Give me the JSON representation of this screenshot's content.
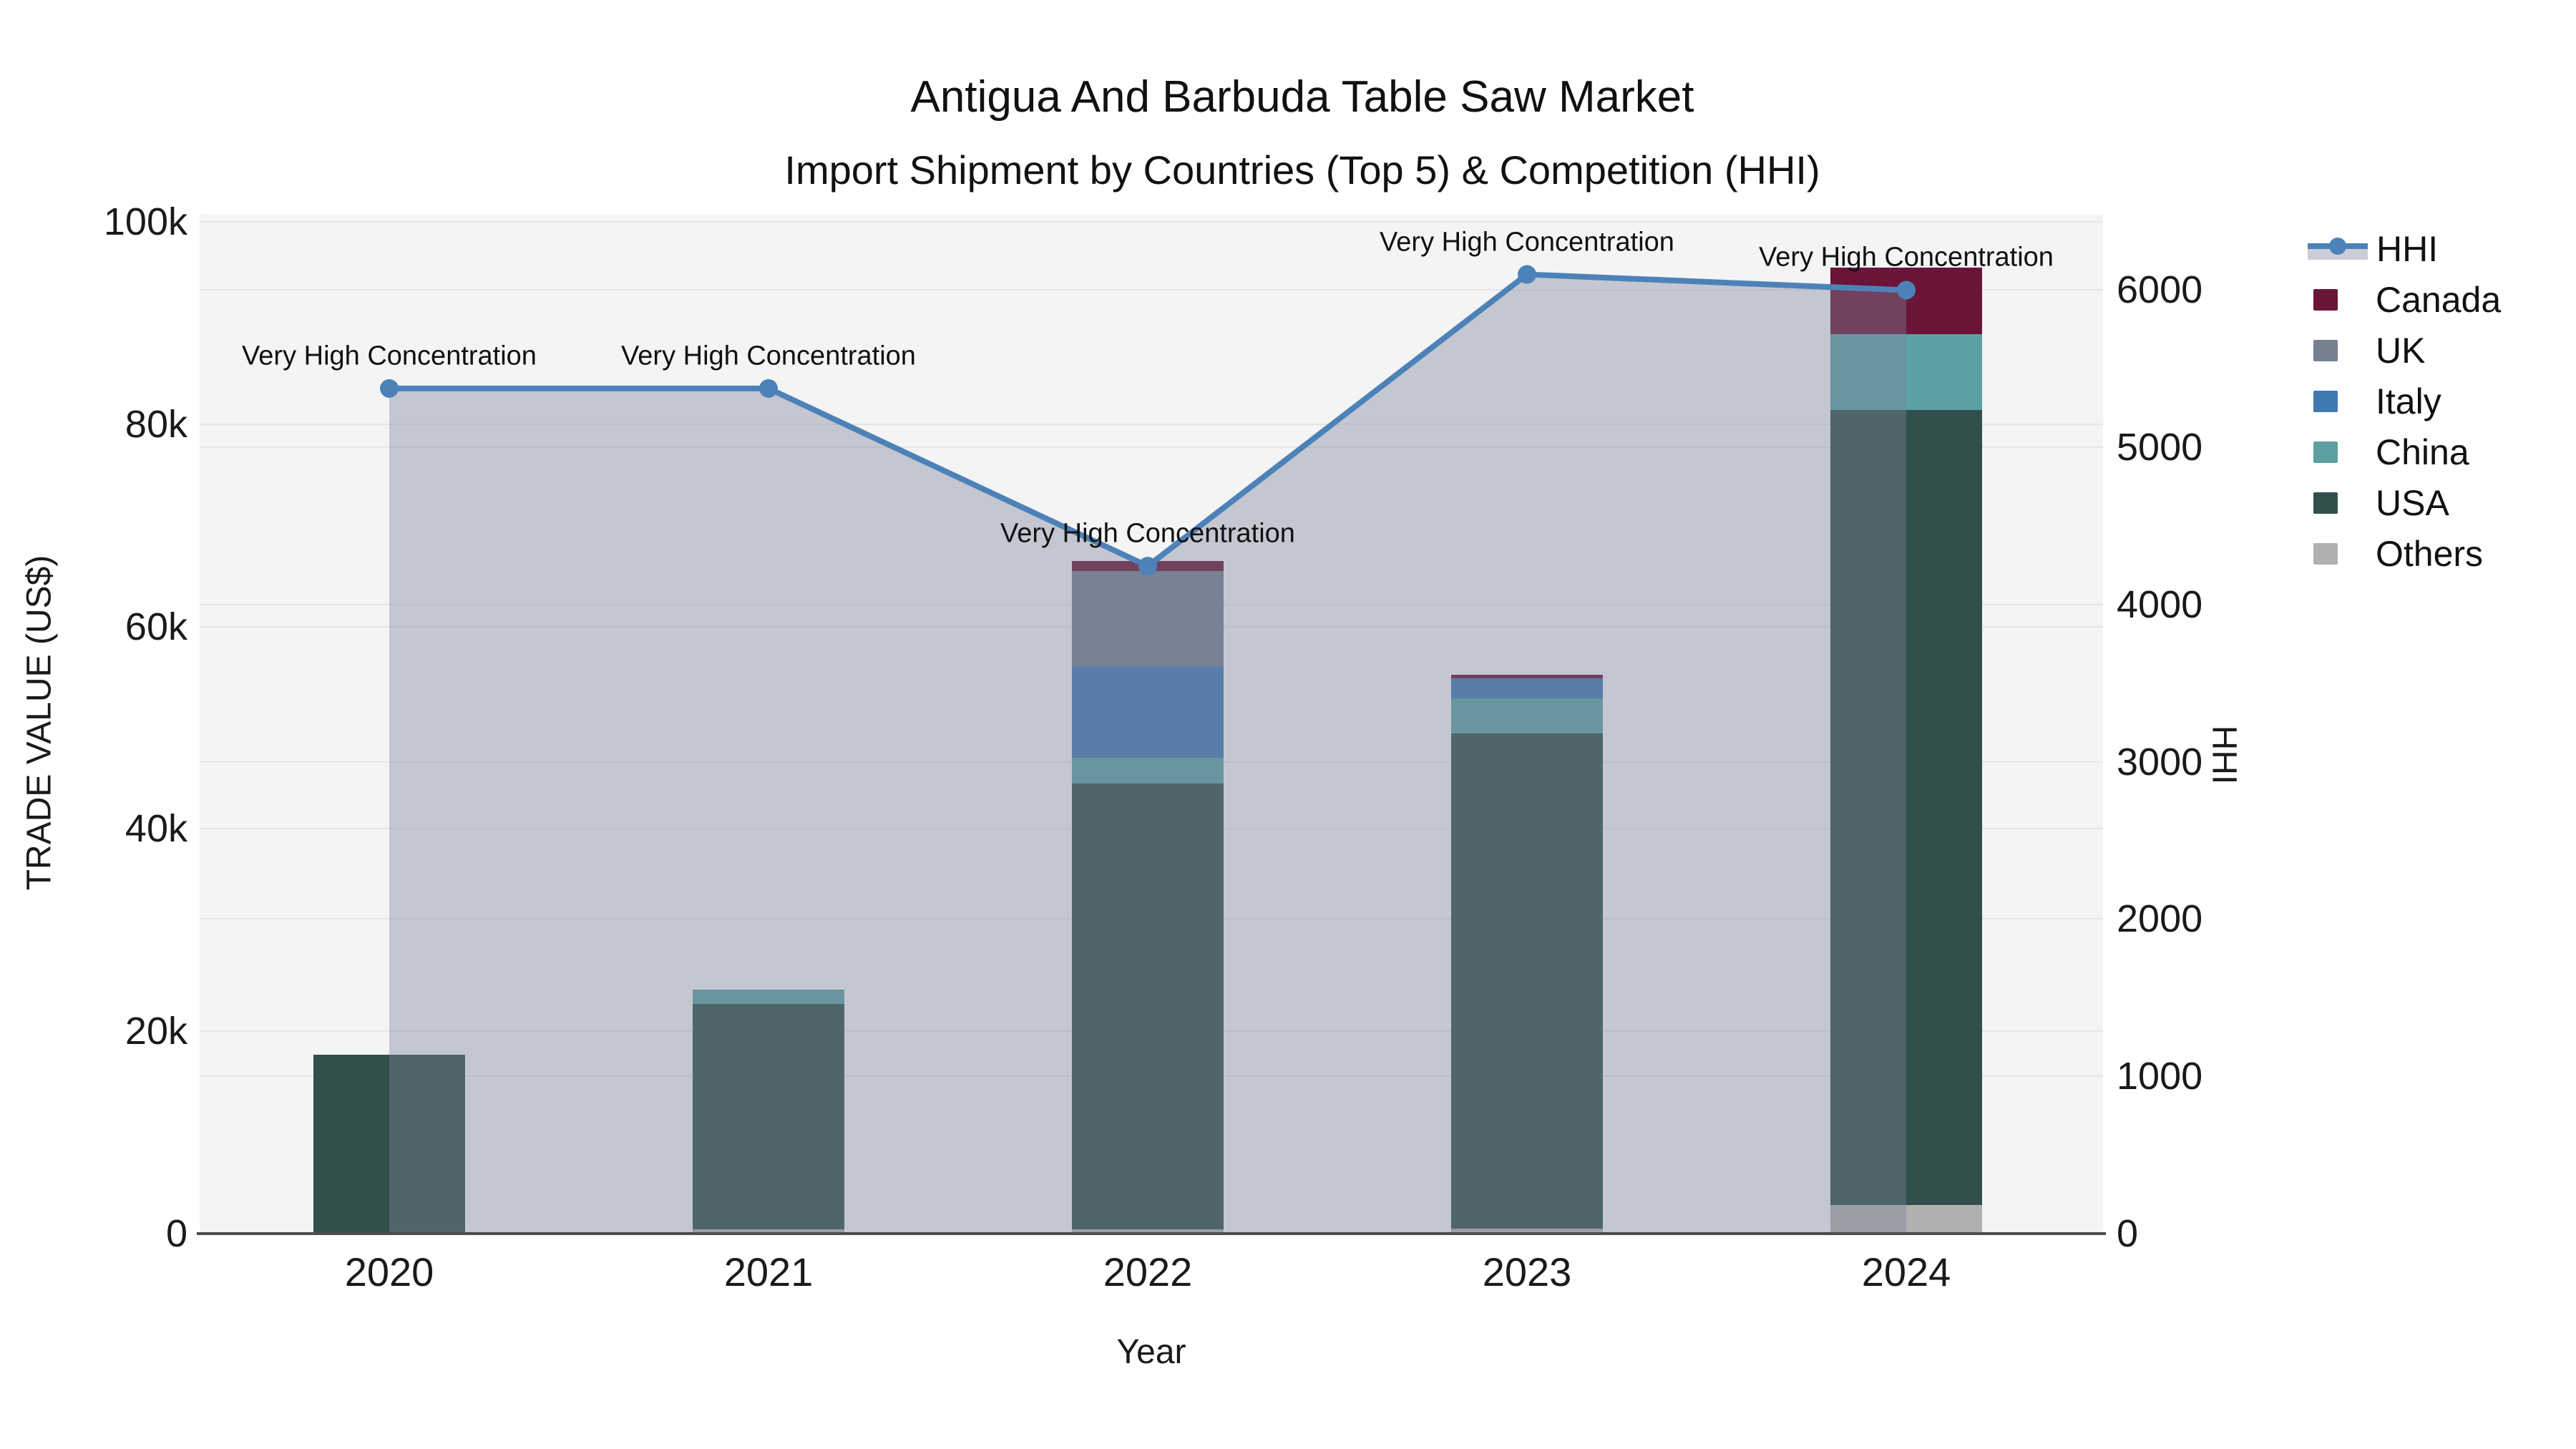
{
  "title": {
    "line1": "Antigua And Barbuda Table Saw Market",
    "line2": "Import Shipment by Countries (Top 5) & Competition (HHI)"
  },
  "axes": {
    "x": {
      "title": "Year",
      "ticks": [
        "2020",
        "2021",
        "2022",
        "2023",
        "2024"
      ]
    },
    "y_left": {
      "title": "TRADE VALUE (US$)",
      "ticks": [
        {
          "label": "0",
          "value": 0
        },
        {
          "label": "20k",
          "value": 20000
        },
        {
          "label": "40k",
          "value": 40000
        },
        {
          "label": "60k",
          "value": 60000
        },
        {
          "label": "80k",
          "value": 80000
        },
        {
          "label": "100k",
          "value": 100000
        }
      ]
    },
    "y_right": {
      "title": "HHI",
      "ticks": [
        {
          "label": "0",
          "value": 0
        },
        {
          "label": "1000",
          "value": 1000
        },
        {
          "label": "2000",
          "value": 2000
        },
        {
          "label": "3000",
          "value": 3000
        },
        {
          "label": "4000",
          "value": 4000
        },
        {
          "label": "5000",
          "value": 5000
        },
        {
          "label": "6000",
          "value": 6000
        }
      ]
    }
  },
  "legend": {
    "items": [
      {
        "label": "HHI",
        "type": "line"
      },
      {
        "label": "Canada",
        "type": "swatch",
        "color_key": "canada"
      },
      {
        "label": "UK",
        "type": "swatch",
        "color_key": "uk"
      },
      {
        "label": "Italy",
        "type": "swatch",
        "color_key": "italy"
      },
      {
        "label": "China",
        "type": "swatch",
        "color_key": "china"
      },
      {
        "label": "USA",
        "type": "swatch",
        "color_key": "usa"
      },
      {
        "label": "Others",
        "type": "swatch",
        "color_key": "others"
      }
    ]
  },
  "colors": {
    "canada": "#6a1438",
    "uk": "#75818f",
    "italy": "#4079b2",
    "china": "#5ca0a1",
    "usa": "#31504c",
    "others": "#b0b0b0",
    "hhi_line": "#4d82b8",
    "hhi_fill": "rgba(125,133,155,0.40)",
    "plot_bg": "#f4f4f5",
    "gridline": "#e4e5e9",
    "axis_line": "#4d4d4d"
  },
  "chart_data": {
    "type": "combo_stacked_bar_line",
    "title": "Antigua And Barbuda Table Saw Market — Import Shipment by Countries (Top 5) & Competition (HHI)",
    "categories": [
      "2020",
      "2021",
      "2022",
      "2023",
      "2024"
    ],
    "xlabel": "Year",
    "ylabel_left": "TRADE VALUE (US$)",
    "ylabel_right": "HHI",
    "y_left_range": [
      0,
      100700
    ],
    "y_right_range": [
      0,
      6480
    ],
    "grid": true,
    "legend_position": "right",
    "bar_series_bottom_to_top": [
      {
        "name": "Others",
        "color_key": "others",
        "values": [
          0,
          400,
          400,
          500,
          2800
        ]
      },
      {
        "name": "USA",
        "color_key": "usa",
        "values": [
          17700,
          22300,
          44100,
          48900,
          78600
        ]
      },
      {
        "name": "China",
        "color_key": "china",
        "values": [
          0,
          1400,
          2500,
          3500,
          7500
        ]
      },
      {
        "name": "Italy",
        "color_key": "italy",
        "values": [
          0,
          0,
          9100,
          2000,
          0
        ]
      },
      {
        "name": "UK",
        "color_key": "uk",
        "values": [
          0,
          0,
          9400,
          0,
          0
        ]
      },
      {
        "name": "Canada",
        "color_key": "canada",
        "values": [
          0,
          0,
          1000,
          300,
          6600
        ]
      }
    ],
    "line_series": {
      "name": "HHI",
      "axis": "right",
      "area_fill": true,
      "values": [
        5375,
        5375,
        4245,
        6100,
        6000
      ]
    },
    "point_annotations": [
      "Very High Concentration",
      "Very High Concentration",
      "Very High Concentration",
      "Very High Concentration",
      "Very High Concentration"
    ]
  }
}
